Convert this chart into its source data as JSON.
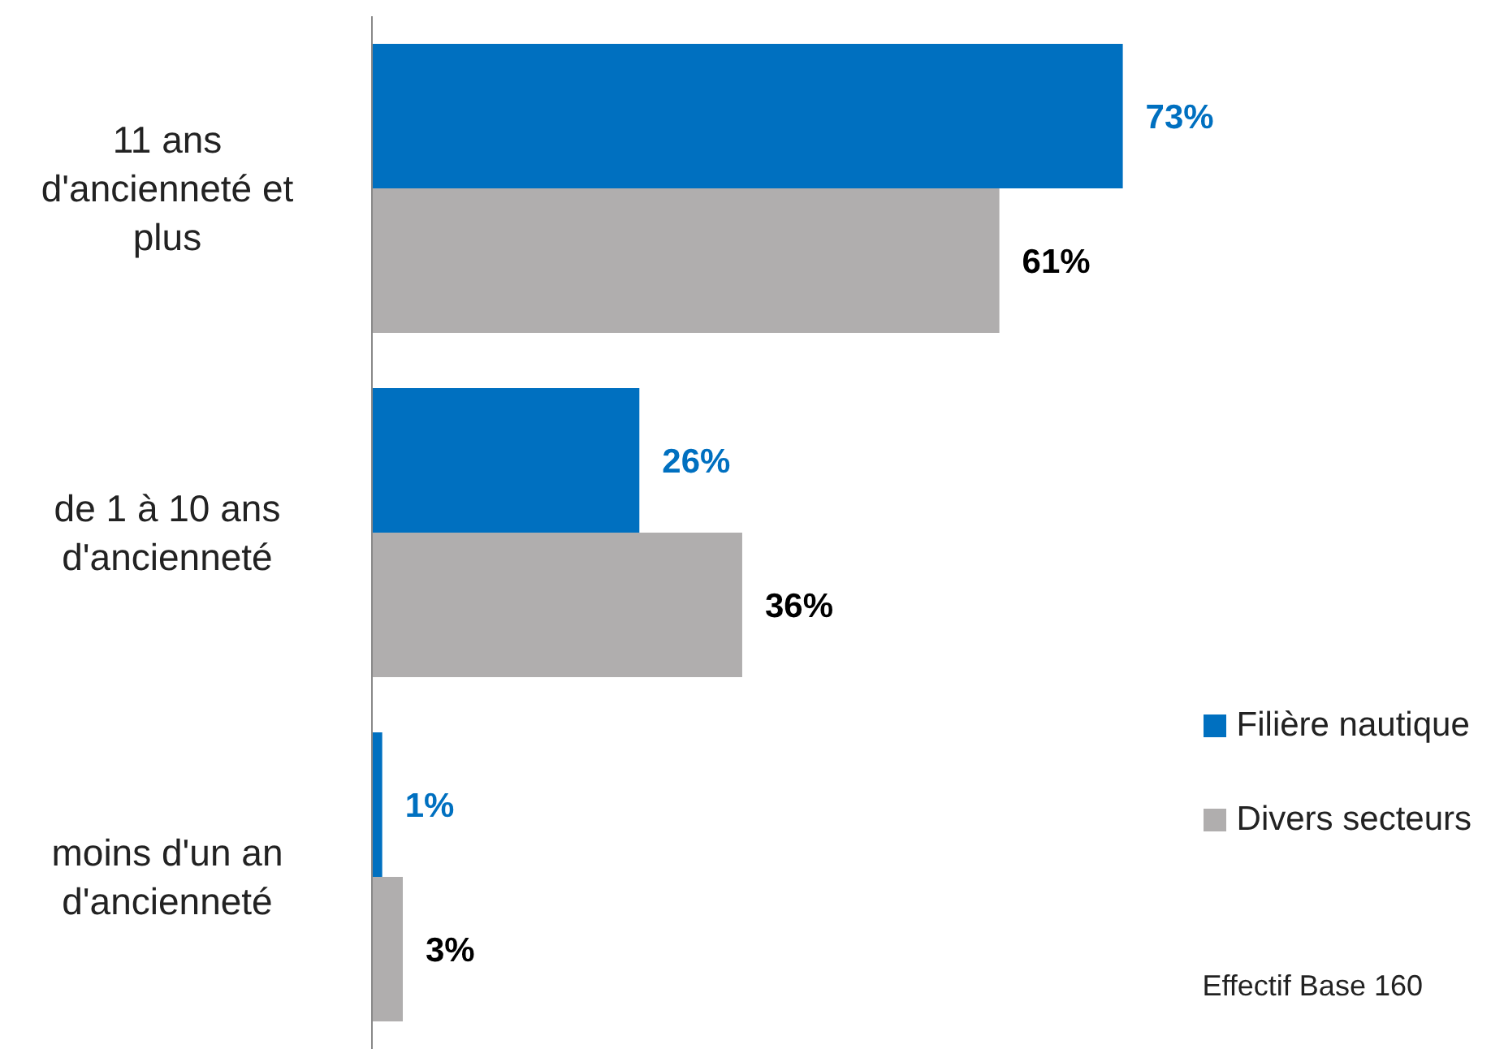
{
  "chart_data": {
    "type": "bar",
    "orientation": "horizontal",
    "categories": [
      "11 ans d'ancienneté et plus",
      "de 1 à 10 ans d'ancienneté",
      "moins d'un an d'ancienneté"
    ],
    "series": [
      {
        "name": "Filière nautique",
        "color": "#0070c0",
        "values": [
          73,
          26,
          1
        ],
        "value_labels": [
          "73%",
          "26%",
          "1%"
        ]
      },
      {
        "name": "Divers secteurs",
        "color": "#b0aeae",
        "values": [
          61,
          36,
          3
        ],
        "value_labels": [
          "61%",
          "36%",
          "3%"
        ]
      }
    ],
    "legend": "bottom right",
    "annotations": [
      "Effectif Base 160"
    ]
  }
}
